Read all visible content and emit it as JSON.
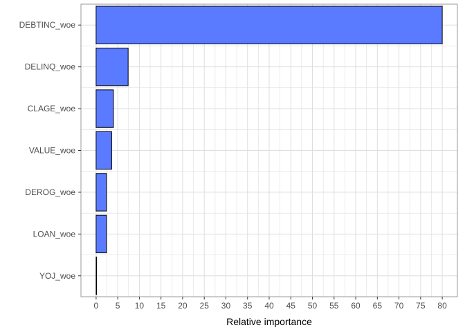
{
  "chart_data": {
    "type": "bar",
    "orientation": "horizontal",
    "categories": [
      "DEBTINC_woe",
      "DELINQ_woe",
      "CLAGE_woe",
      "VALUE_woe",
      "DEROG_woe",
      "LOAN_woe",
      "YOJ_woe"
    ],
    "values": [
      80,
      7.4,
      4.0,
      3.6,
      2.4,
      2.4,
      0.1
    ],
    "xlabel": "Relative importance",
    "ylabel": "",
    "title": "",
    "xlim": [
      -3.5,
      83.5
    ],
    "xticks": [
      0,
      5,
      10,
      15,
      20,
      25,
      30,
      35,
      40,
      45,
      50,
      55,
      60,
      65,
      70,
      75,
      80
    ],
    "grid": true,
    "bar_color": "#5a7bff",
    "bar_border_color": "#000000",
    "grid_color": "#dedede",
    "panel_border_color": "#999999"
  }
}
